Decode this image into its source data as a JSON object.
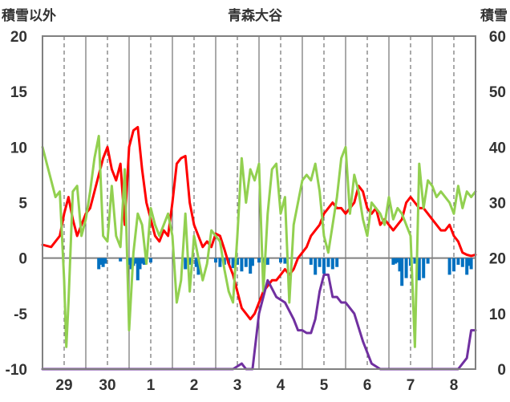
{
  "chart_data": {
    "type": "line",
    "title": "青森大谷",
    "left_axis_label": "積雪以外",
    "right_axis_label": "積雪",
    "left_ylim": [
      -10,
      20
    ],
    "left_yticks": [
      20,
      15,
      10,
      5,
      0,
      -5,
      -10
    ],
    "right_ylim": [
      0,
      60
    ],
    "right_yticks": [
      60,
      50,
      40,
      30,
      20,
      10,
      0
    ],
    "xlim": [
      0,
      10
    ],
    "x_ticks": [
      {
        "x": 0.5,
        "label": "29"
      },
      {
        "x": 1.5,
        "label": "30"
      },
      {
        "x": 2.5,
        "label": "1"
      },
      {
        "x": 3.5,
        "label": "2"
      },
      {
        "x": 4.5,
        "label": "3"
      },
      {
        "x": 5.5,
        "label": "4"
      },
      {
        "x": 6.5,
        "label": "5"
      },
      {
        "x": 7.5,
        "label": "6"
      },
      {
        "x": 8.5,
        "label": "7"
      },
      {
        "x": 9.5,
        "label": "8"
      }
    ],
    "grid": "vertical: solid at day boundaries, dashed at midday",
    "colors": {
      "red": "#ff0000",
      "green": "#92d050",
      "purple": "#7030a0",
      "blue": "#0070c0",
      "axis": "#808080"
    },
    "series": [
      {
        "color": "#ff0000",
        "axis": "left",
        "x": [
          0.0,
          0.2,
          0.4,
          0.5,
          0.6,
          0.7,
          0.8,
          1.0,
          1.1,
          1.2,
          1.3,
          1.4,
          1.5,
          1.6,
          1.7,
          1.8,
          1.9,
          2.0,
          2.1,
          2.2,
          2.3,
          2.4,
          2.5,
          2.6,
          2.7,
          2.8,
          2.9,
          3.0,
          3.1,
          3.2,
          3.3,
          3.4,
          3.5,
          3.6,
          3.7,
          3.8,
          3.9,
          4.0,
          4.1,
          4.2,
          4.3,
          4.4,
          4.5,
          4.6,
          4.7,
          4.8,
          4.9,
          5.0,
          5.1,
          5.2,
          5.3,
          5.4,
          5.5,
          5.6,
          5.7,
          5.8,
          5.9,
          6.0,
          6.1,
          6.2,
          6.3,
          6.4,
          6.5,
          6.6,
          6.7,
          6.8,
          6.9,
          7.0,
          7.1,
          7.2,
          7.3,
          7.4,
          7.5,
          7.6,
          7.7,
          7.8,
          7.9,
          8.0,
          8.1,
          8.2,
          8.3,
          8.4,
          8.5,
          8.6,
          8.7,
          8.8,
          8.9,
          9.0,
          9.1,
          9.2,
          9.3,
          9.4,
          9.5,
          9.6,
          9.7,
          9.8,
          9.9,
          10.0
        ],
        "y": [
          1.2,
          1.0,
          2.0,
          4.0,
          5.5,
          3.5,
          2.0,
          4.0,
          4.5,
          6.0,
          7.5,
          9.0,
          10.0,
          8.0,
          7.0,
          8.5,
          3.0,
          10.0,
          11.5,
          11.8,
          8.0,
          5.0,
          3.5,
          2.0,
          1.5,
          2.5,
          2.0,
          5.0,
          8.5,
          9.0,
          9.2,
          5.0,
          3.0,
          2.0,
          1.0,
          1.5,
          1.0,
          2.2,
          2.0,
          0.8,
          -0.5,
          -1.5,
          -3.0,
          -4.5,
          -5.0,
          -5.5,
          -5.0,
          -4.0,
          -3.0,
          -2.5,
          -2.0,
          -2.0,
          -1.5,
          -1.0,
          -1.5,
          -1.0,
          0.0,
          0.5,
          1.0,
          2.0,
          2.5,
          3.0,
          4.0,
          4.5,
          5.0,
          4.5,
          4.5,
          4.0,
          4.5,
          5.0,
          6.5,
          6.0,
          4.5,
          4.0,
          4.5,
          3.0,
          3.5,
          3.0,
          2.5,
          3.0,
          3.5,
          5.0,
          5.5,
          5.0,
          4.5,
          4.5,
          4.0,
          3.5,
          3.0,
          2.5,
          2.5,
          3.0,
          2.0,
          1.5,
          0.5,
          0.3,
          0.2,
          0.3
        ]
      },
      {
        "color": "#92d050",
        "axis": "left",
        "x": [
          0.0,
          0.1,
          0.2,
          0.3,
          0.4,
          0.5,
          0.55,
          0.6,
          0.7,
          0.8,
          0.9,
          1.0,
          1.1,
          1.2,
          1.3,
          1.4,
          1.5,
          1.6,
          1.7,
          1.8,
          1.9,
          2.0,
          2.1,
          2.2,
          2.3,
          2.4,
          2.5,
          2.6,
          2.7,
          2.8,
          2.9,
          3.0,
          3.1,
          3.2,
          3.3,
          3.4,
          3.5,
          3.6,
          3.7,
          3.8,
          3.9,
          4.0,
          4.1,
          4.2,
          4.3,
          4.4,
          4.5,
          4.6,
          4.7,
          4.8,
          4.9,
          5.0,
          5.1,
          5.2,
          5.3,
          5.4,
          5.5,
          5.6,
          5.7,
          5.8,
          5.9,
          6.0,
          6.1,
          6.2,
          6.3,
          6.4,
          6.5,
          6.6,
          6.7,
          6.8,
          6.9,
          7.0,
          7.1,
          7.2,
          7.3,
          7.4,
          7.5,
          7.6,
          7.7,
          7.8,
          7.9,
          8.0,
          8.1,
          8.2,
          8.3,
          8.4,
          8.5,
          8.6,
          8.7,
          8.8,
          8.9,
          9.0,
          9.1,
          9.2,
          9.3,
          9.4,
          9.5,
          9.6,
          9.7,
          9.8,
          9.9,
          10.0
        ],
        "y": [
          10.0,
          8.5,
          7.0,
          5.5,
          6.0,
          -2.0,
          -8.0,
          -4.0,
          6.0,
          6.5,
          2.0,
          3.5,
          6.0,
          9.0,
          11.0,
          2.0,
          1.5,
          6.5,
          2.0,
          1.0,
          8.0,
          -6.5,
          0.5,
          4.0,
          3.0,
          -0.5,
          4.5,
          3.0,
          2.0,
          3.0,
          4.0,
          2.0,
          -4.0,
          -2.0,
          4.0,
          -3.0,
          2.0,
          0.0,
          -2.0,
          -0.5,
          2.5,
          2.0,
          1.5,
          -1.0,
          -3.0,
          -4.0,
          2.0,
          9.0,
          5.0,
          8.0,
          7.0,
          8.5,
          -3.0,
          4.0,
          8.0,
          8.5,
          4.0,
          5.5,
          -4.0,
          3.0,
          5.0,
          7.0,
          7.5,
          7.0,
          8.5,
          6.0,
          2.0,
          0.5,
          3.0,
          5.5,
          9.0,
          10.0,
          4.0,
          7.5,
          6.0,
          3.5,
          2.0,
          5.0,
          4.5,
          4.0,
          3.0,
          5.5,
          3.5,
          4.5,
          4.0,
          3.0,
          2.0,
          -8.0,
          8.5,
          4.5,
          7.0,
          6.5,
          5.5,
          6.0,
          5.5,
          5.0,
          4.0,
          6.5,
          4.5,
          6.0,
          5.5,
          6.0
        ]
      },
      {
        "color": "#7030a0",
        "axis": "right",
        "x": [
          0.0,
          4.4,
          4.6,
          4.7,
          4.85,
          5.0,
          5.2,
          5.4,
          5.6,
          5.8,
          5.9,
          6.0,
          6.1,
          6.2,
          6.3,
          6.4,
          6.5,
          6.6,
          6.7,
          6.8,
          6.9,
          7.0,
          7.1,
          7.2,
          7.4,
          7.6,
          7.8,
          9.6,
          9.8,
          9.9,
          10.0
        ],
        "y": [
          0.0,
          0.0,
          1.0,
          0.0,
          0.0,
          10.0,
          16.0,
          13.0,
          12.0,
          9.0,
          7.0,
          7.0,
          6.5,
          6.5,
          9.0,
          14.0,
          17.0,
          17.0,
          13.0,
          13.0,
          12.0,
          12.0,
          11.0,
          10.0,
          5.0,
          1.0,
          0.0,
          0.0,
          2.0,
          7.0,
          7.0
        ]
      },
      {
        "color": "#0070c0",
        "axis": "left",
        "style": "bar",
        "x": [
          1.3,
          1.35,
          1.4,
          1.45,
          1.8,
          2.0,
          2.05,
          2.1,
          2.15,
          2.2,
          2.25,
          2.3,
          2.35,
          2.5,
          3.3,
          3.4,
          3.55,
          3.6,
          4.0,
          4.1,
          4.2,
          4.3,
          4.4,
          4.5,
          4.6,
          4.7,
          4.8,
          4.85,
          5.0,
          5.1,
          5.2,
          5.5,
          5.6,
          6.2,
          6.3,
          6.4,
          6.5,
          6.6,
          6.7,
          6.8,
          8.1,
          8.15,
          8.2,
          8.25,
          8.3,
          8.4,
          8.5,
          8.6,
          8.7,
          8.8,
          8.9,
          9.4,
          9.5,
          9.6,
          9.7,
          9.8,
          9.85,
          9.9
        ],
        "y": [
          -1.0,
          -0.6,
          -0.8,
          -0.5,
          -0.3,
          -0.6,
          -1.0,
          -0.7,
          -0.5,
          -2.0,
          -1.0,
          -0.5,
          -0.6,
          -0.4,
          -1.0,
          -0.6,
          -0.8,
          -1.5,
          -0.4,
          -0.8,
          -0.6,
          -0.5,
          -0.9,
          -0.6,
          -1.2,
          -0.8,
          -1.4,
          -0.7,
          -0.4,
          -0.5,
          -0.6,
          -0.4,
          -0.5,
          -0.6,
          -1.5,
          -0.8,
          -1.4,
          -0.8,
          -1.0,
          -0.8,
          -0.6,
          -0.5,
          -0.4,
          -1.2,
          -2.5,
          -1.8,
          -0.7,
          -0.5,
          -2.0,
          -1.8,
          -0.5,
          -1.5,
          -1.2,
          -0.6,
          -0.8,
          -1.5,
          -0.7,
          -1.0
        ]
      }
    ]
  }
}
